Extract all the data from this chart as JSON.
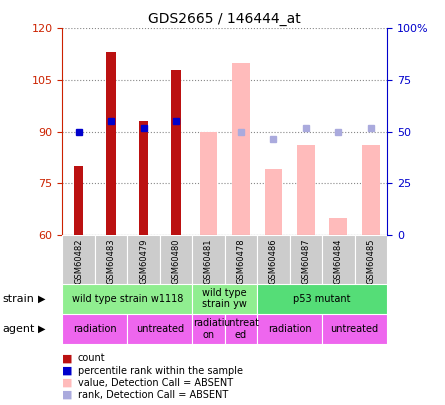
{
  "title": "GDS2665 / 146444_at",
  "samples": [
    "GSM60482",
    "GSM60483",
    "GSM60479",
    "GSM60480",
    "GSM60481",
    "GSM60478",
    "GSM60486",
    "GSM60487",
    "GSM60484",
    "GSM60485"
  ],
  "count_values": [
    80,
    113,
    93,
    108,
    null,
    null,
    null,
    null,
    null,
    null
  ],
  "rank_values": [
    90,
    93,
    91,
    93,
    null,
    null,
    null,
    null,
    null,
    null
  ],
  "absent_value": [
    null,
    null,
    null,
    null,
    90,
    110,
    79,
    86,
    65,
    86
  ],
  "absent_rank": [
    null,
    null,
    null,
    null,
    null,
    90,
    88,
    91,
    90,
    91
  ],
  "ylim_left": [
    60,
    120
  ],
  "ylim_right": [
    0,
    100
  ],
  "yticks_left": [
    60,
    75,
    90,
    105,
    120
  ],
  "yticks_right": [
    0,
    25,
    50,
    75,
    100
  ],
  "ytick_labels_right": [
    "0",
    "25",
    "50",
    "75",
    "100%"
  ],
  "strain_groups": [
    {
      "label": "wild type strain w1118",
      "start": 0,
      "end": 4,
      "color": "#90EE90"
    },
    {
      "label": "wild type\nstrain yw",
      "start": 4,
      "end": 6,
      "color": "#90EE90"
    },
    {
      "label": "p53 mutant",
      "start": 6,
      "end": 10,
      "color": "#55DD77"
    }
  ],
  "agent_groups": [
    {
      "label": "radiation",
      "start": 0,
      "end": 2,
      "color": "#EE66EE"
    },
    {
      "label": "untreated",
      "start": 2,
      "end": 4,
      "color": "#EE66EE"
    },
    {
      "label": "radiati\non",
      "start": 4,
      "end": 5,
      "color": "#EE66EE"
    },
    {
      "label": "untreat\ned",
      "start": 5,
      "end": 6,
      "color": "#EE66EE"
    },
    {
      "label": "radiation",
      "start": 6,
      "end": 8,
      "color": "#EE66EE"
    },
    {
      "label": "untreated",
      "start": 8,
      "end": 10,
      "color": "#EE66EE"
    }
  ],
  "bar_color_present": "#BB1111",
  "bar_color_absent": "#FFBBBB",
  "rank_color_present": "#0000CC",
  "rank_color_absent": "#AAAADD",
  "left_axis_color": "#CC2200",
  "right_axis_color": "#0000CC",
  "grid_color": "#888888",
  "sample_bg_color": "#CCCCCC",
  "legend_items": [
    {
      "label": "count",
      "color": "#BB1111"
    },
    {
      "label": "percentile rank within the sample",
      "color": "#0000CC"
    },
    {
      "label": "value, Detection Call = ABSENT",
      "color": "#FFBBBB"
    },
    {
      "label": "rank, Detection Call = ABSENT",
      "color": "#AAAADD"
    }
  ]
}
